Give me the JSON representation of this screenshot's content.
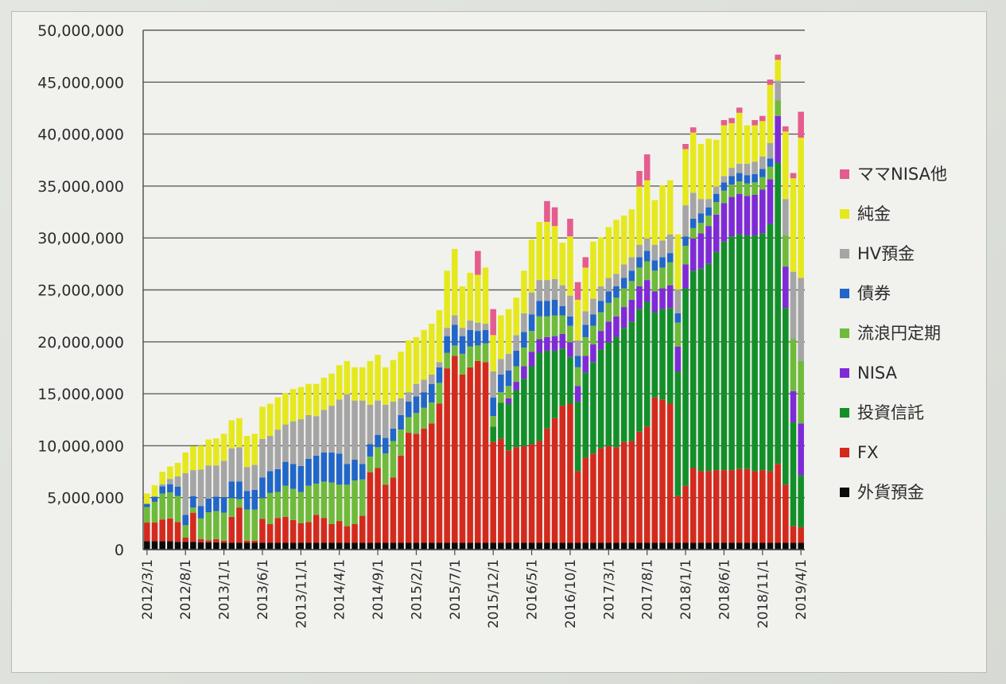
{
  "chart_data": {
    "type": "bar",
    "stacked": true,
    "ylim": [
      0,
      50000000
    ],
    "yticks": [
      "0",
      "5,000,000",
      "10,000,000",
      "15,000,000",
      "20,000,000",
      "25,000,000",
      "30,000,000",
      "35,000,000",
      "40,000,000",
      "45,000,000",
      "50,000,000"
    ],
    "x_tick_labels": [
      "2012/3/1",
      "2012/8/1",
      "2013/1/1",
      "2013/6/1",
      "2013/11/1",
      "2014/4/1",
      "2014/9/1",
      "2015/2/1",
      "2015/7/1",
      "2015/12/1",
      "2016/5/1",
      "2016/10/1",
      "2017/3/1",
      "2017/8/1",
      "2018/1/1",
      "2018/6/1",
      "2018/11/1",
      "2019/4/1"
    ],
    "categories": [
      "2012/3",
      "2012/4",
      "2012/5",
      "2012/6",
      "2012/7",
      "2012/8",
      "2012/9",
      "2012/10",
      "2012/11",
      "2012/12",
      "2013/1",
      "2013/2",
      "2013/3",
      "2013/4",
      "2013/5",
      "2013/6",
      "2013/7",
      "2013/8",
      "2013/9",
      "2013/10",
      "2013/11",
      "2013/12",
      "2014/1",
      "2014/2",
      "2014/3",
      "2014/4",
      "2014/5",
      "2014/6",
      "2014/7",
      "2014/8",
      "2014/9",
      "2014/10",
      "2014/11",
      "2014/12",
      "2015/1",
      "2015/2",
      "2015/3",
      "2015/4",
      "2015/5",
      "2015/6",
      "2015/7",
      "2015/8",
      "2015/9",
      "2015/10",
      "2015/11",
      "2015/12",
      "2016/1",
      "2016/2",
      "2016/3",
      "2016/4",
      "2016/5",
      "2016/6",
      "2016/7",
      "2016/8",
      "2016/9",
      "2016/10",
      "2016/11",
      "2016/12",
      "2017/1",
      "2017/2",
      "2017/3",
      "2017/4",
      "2017/5",
      "2017/6",
      "2017/7",
      "2017/8",
      "2017/9",
      "2017/10",
      "2017/11",
      "2017/12",
      "2018/1",
      "2018/2",
      "2018/3",
      "2018/4",
      "2018/5",
      "2018/6",
      "2018/7",
      "2018/8",
      "2018/9",
      "2018/10",
      "2018/11",
      "2018/12",
      "2019/1",
      "2019/2",
      "2019/3",
      "2019/4"
    ],
    "series": [
      {
        "name": "外貨預金",
        "color": "#0a0a0a",
        "values": [
          800000,
          800000,
          800000,
          800000,
          750000,
          750000,
          750000,
          700000,
          700000,
          700000,
          650000,
          650000,
          650000,
          650000,
          650000,
          650000,
          650000,
          650000,
          650000,
          650000,
          650000,
          650000,
          650000,
          650000,
          650000,
          650000,
          650000,
          650000,
          650000,
          650000,
          650000,
          650000,
          650000,
          650000,
          650000,
          650000,
          650000,
          650000,
          650000,
          650000,
          650000,
          650000,
          650000,
          650000,
          650000,
          650000,
          650000,
          650000,
          650000,
          650000,
          650000,
          650000,
          650000,
          650000,
          650000,
          650000,
          650000,
          650000,
          650000,
          650000,
          650000,
          650000,
          650000,
          650000,
          650000,
          650000,
          650000,
          650000,
          650000,
          650000,
          650000,
          650000,
          650000,
          650000,
          650000,
          650000,
          650000,
          650000,
          650000,
          650000,
          650000,
          650000,
          650000,
          650000,
          650000,
          650000
        ]
      },
      {
        "name": "FX",
        "color": "#d42a1e",
        "values": [
          1800000,
          1800000,
          2100000,
          2200000,
          1900000,
          400000,
          2800000,
          300000,
          200000,
          300000,
          200000,
          2500000,
          3400000,
          200000,
          200000,
          2300000,
          1800000,
          2400000,
          2500000,
          2200000,
          1900000,
          2000000,
          2700000,
          2400000,
          1800000,
          2100000,
          1600000,
          1800000,
          2600000,
          6800000,
          7200000,
          5600000,
          6300000,
          8400000,
          10600000,
          10500000,
          11000000,
          11500000,
          13400000,
          16800000,
          18000000,
          16200000,
          16900000,
          17500000,
          17400000,
          9700000,
          10000000,
          8900000,
          9200000,
          9300000,
          9500000,
          9800000,
          11000000,
          12000000,
          13200000,
          13400000,
          6900000,
          8200000,
          8600000,
          9100000,
          9300000,
          9200000,
          9700000,
          9800000,
          10700000,
          11200000,
          14000000,
          13800000,
          13400000,
          4500000,
          5500000,
          7200000,
          6900000,
          6900000,
          7000000,
          7000000,
          7000000,
          7100000,
          7100000,
          6900000,
          7000000,
          6900000,
          7600000,
          5600000,
          1600000,
          1500000
        ]
      },
      {
        "name": "投資信託",
        "color": "#138f2a",
        "values": [
          0,
          0,
          0,
          0,
          0,
          0,
          0,
          0,
          0,
          0,
          0,
          0,
          0,
          0,
          0,
          0,
          0,
          0,
          0,
          0,
          0,
          0,
          0,
          0,
          0,
          0,
          0,
          0,
          0,
          0,
          0,
          0,
          0,
          0,
          0,
          0,
          0,
          0,
          0,
          0,
          0,
          0,
          0,
          0,
          0,
          1500000,
          3500000,
          4500000,
          5500000,
          6500000,
          7500000,
          8500000,
          7500000,
          6500000,
          5500000,
          4500000,
          6700000,
          8200000,
          8800000,
          9500000,
          10000000,
          10600000,
          11000000,
          11500000,
          11800000,
          12000000,
          8200000,
          8700000,
          9200000,
          12000000,
          19000000,
          19000000,
          19500000,
          20000000,
          21000000,
          22000000,
          22500000,
          22600000,
          22500000,
          22700000,
          22800000,
          23800000,
          29000000,
          17000000,
          10000000,
          5000000
        ]
      },
      {
        "name": "NISA",
        "color": "#7e2bd6",
        "values": [
          0,
          0,
          0,
          0,
          0,
          0,
          0,
          0,
          0,
          0,
          0,
          0,
          0,
          0,
          0,
          0,
          0,
          0,
          0,
          0,
          0,
          0,
          0,
          0,
          0,
          0,
          0,
          0,
          0,
          0,
          0,
          0,
          0,
          0,
          0,
          0,
          0,
          0,
          0,
          0,
          0,
          0,
          0,
          0,
          0,
          0,
          0,
          500000,
          800000,
          1200000,
          1400000,
          1300000,
          1300000,
          1400000,
          1400000,
          1400000,
          1500000,
          1600000,
          1700000,
          1800000,
          2000000,
          2000000,
          2000000,
          2100000,
          2200000,
          2100000,
          2000000,
          2000000,
          2200000,
          2400000,
          2300000,
          3100000,
          3400000,
          3600000,
          3600000,
          3700000,
          3800000,
          3900000,
          3800000,
          3900000,
          4200000,
          4300000,
          4500000,
          4000000,
          3000000,
          5000000
        ]
      },
      {
        "name": "流浪円定期",
        "color": "#6fba3a",
        "values": [
          1500000,
          2000000,
          2500000,
          2500000,
          2500000,
          1200000,
          500000,
          2000000,
          2700000,
          2700000,
          2700000,
          1800000,
          800000,
          3000000,
          3000000,
          2000000,
          3000000,
          2500000,
          3000000,
          3000000,
          3000000,
          3500000,
          3000000,
          3500000,
          4000000,
          3500000,
          4000000,
          4200000,
          3500000,
          1500000,
          2000000,
          3000000,
          3500000,
          2500000,
          1500000,
          2000000,
          2000000,
          2000000,
          2000000,
          1500000,
          1000000,
          2000000,
          2000000,
          1500000,
          1800000,
          1000000,
          1000000,
          1200000,
          1500000,
          1800000,
          2000000,
          2200000,
          2000000,
          2000000,
          1800000,
          1600000,
          1800000,
          1800000,
          1800000,
          1800000,
          1800000,
          1800000,
          1800000,
          1800000,
          1800000,
          1800000,
          2000000,
          2000000,
          2200000,
          2300000,
          1800000,
          1000000,
          1000000,
          1000000,
          1200000,
          1200000,
          1200000,
          1200000,
          1200000,
          1200000,
          1200000,
          1200000,
          1500000,
          3000000,
          5000000,
          6000000
        ]
      },
      {
        "name": "債券",
        "color": "#2166c8",
        "values": [
          300000,
          500000,
          700000,
          800000,
          900000,
          1000000,
          1100000,
          1200000,
          1300000,
          1400000,
          1500000,
          1600000,
          1700000,
          1800000,
          1900000,
          2000000,
          2100000,
          2200000,
          2300000,
          2400000,
          2500000,
          2600000,
          2700000,
          2800000,
          2900000,
          3000000,
          2000000,
          2000000,
          1500000,
          1200000,
          1200000,
          1500000,
          1200000,
          1400000,
          1500000,
          1600000,
          1500000,
          1800000,
          1500000,
          1600000,
          2000000,
          1700000,
          1600000,
          1400000,
          1300000,
          1800000,
          1700000,
          1500000,
          1500000,
          1500000,
          1600000,
          1500000,
          1500000,
          1500000,
          900000,
          900000,
          1100000,
          1200000,
          1100000,
          1100000,
          1100000,
          1100000,
          1000000,
          1000000,
          1000000,
          1000000,
          1000000,
          1000000,
          900000,
          900000,
          900000,
          900000,
          900000,
          800000,
          800000,
          800000,
          800000,
          800000,
          800000,
          800000,
          800000,
          800000,
          0,
          0,
          0,
          0
        ]
      },
      {
        "name": "HV預金",
        "color": "#a5a5a5",
        "values": [
          0,
          0,
          200000,
          500000,
          1000000,
          4000000,
          2500000,
          3500000,
          3200000,
          3000000,
          3500000,
          3200000,
          3300000,
          2300000,
          2400000,
          3700000,
          3400000,
          3800000,
          3600000,
          4100000,
          4500000,
          4200000,
          3800000,
          4100000,
          4500000,
          5200000,
          6700000,
          5700000,
          6100000,
          3800000,
          3300000,
          3200000,
          2600000,
          1600000,
          900000,
          1200000,
          1200000,
          900000,
          500000,
          800000,
          900000,
          800000,
          900000,
          800000,
          600000,
          2500000,
          1500000,
          1600000,
          1500000,
          1800000,
          2100000,
          2000000,
          2000000,
          2000000,
          2000000,
          2000000,
          1500000,
          1300000,
          1500000,
          1400000,
          1300000,
          1200000,
          1300000,
          1300000,
          1200000,
          1200000,
          1500000,
          1600000,
          1800000,
          2300000,
          3000000,
          2500000,
          1400000,
          800000,
          700000,
          600000,
          800000,
          900000,
          1100000,
          1200000,
          1200000,
          1500000,
          1900000,
          3500000,
          6500000,
          8000000
        ]
      },
      {
        "name": "純金",
        "color": "#e6e81e",
        "values": [
          1000000,
          1100000,
          1200000,
          1200000,
          1300000,
          2000000,
          2300000,
          2300000,
          2500000,
          2600000,
          2600000,
          2700000,
          2800000,
          3000000,
          3000000,
          3100000,
          3100000,
          3100000,
          3000000,
          3100000,
          3100000,
          3000000,
          3100000,
          3100000,
          3100000,
          3300000,
          3200000,
          3200000,
          3200000,
          4200000,
          4400000,
          3600000,
          4000000,
          4500000,
          5000000,
          4500000,
          4800000,
          4900000,
          5000000,
          5500000,
          6400000,
          4000000,
          4600000,
          4600000,
          5400000,
          3500000,
          4200000,
          4300000,
          3600000,
          4100000,
          5100000,
          5600000,
          5600000,
          5100000,
          4100000,
          5700000,
          3900000,
          4200000,
          5500000,
          4700000,
          4900000,
          5200000,
          4700000,
          4600000,
          5600000,
          5600000,
          4300000,
          5300000,
          5200000,
          5300000,
          5400000,
          5800000,
          5300000,
          5800000,
          4500000,
          4900000,
          4300000,
          4900000,
          3700000,
          3500000,
          3400000,
          5600000,
          2000000,
          6500000,
          9000000,
          13500000
        ]
      },
      {
        "name": "ママNISA他",
        "color": "#e45d8e",
        "values": [
          0,
          0,
          0,
          0,
          0,
          0,
          0,
          0,
          0,
          0,
          0,
          0,
          0,
          0,
          0,
          0,
          0,
          0,
          0,
          0,
          0,
          0,
          0,
          0,
          0,
          0,
          0,
          0,
          0,
          0,
          0,
          0,
          0,
          0,
          0,
          0,
          0,
          0,
          0,
          0,
          0,
          0,
          0,
          2300000,
          0,
          2500000,
          0,
          0,
          0,
          0,
          0,
          0,
          2000000,
          1800000,
          0,
          1700000,
          1700000,
          1000000,
          0,
          0,
          0,
          0,
          0,
          0,
          1500000,
          2500000,
          0,
          0,
          0,
          0,
          500000,
          500000,
          0,
          0,
          0,
          500000,
          500000,
          500000,
          0,
          500000,
          500000,
          500000,
          500000,
          500000,
          500000,
          2500000
        ]
      }
    ],
    "legend_order": [
      "ママNISA他",
      "純金",
      "HV預金",
      "債券",
      "流浪円定期",
      "NISA",
      "投資信託",
      "FX",
      "外貨預金"
    ],
    "legend_position": "right"
  }
}
